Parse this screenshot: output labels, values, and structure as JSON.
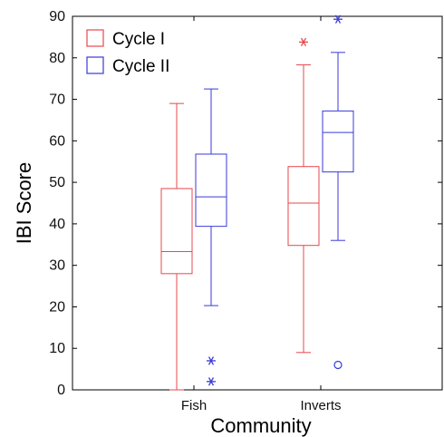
{
  "chart_data": {
    "type": "box",
    "xlabel": "Community",
    "ylabel": "IBI Score",
    "ylim": [
      0,
      90
    ],
    "yticks": [
      "0",
      "10",
      "20",
      "30",
      "40",
      "50",
      "60",
      "70",
      "80",
      "90"
    ],
    "categories": [
      "Fish",
      "Inverts"
    ],
    "grid": false,
    "legend_position": "top-left",
    "series": [
      {
        "name": "Cycle I",
        "color": "#e8474d",
        "boxes": [
          {
            "category": "Fish",
            "whisker_low": 0,
            "q1": 28,
            "median": 33.3,
            "q3": 48.5,
            "whisker_high": 69,
            "outliers": []
          },
          {
            "category": "Inverts",
            "whisker_low": 9,
            "q1": 34.8,
            "median": 45,
            "q3": 53.8,
            "whisker_high": 78.3,
            "outliers": [
              {
                "value": 83.8,
                "marker": "*"
              }
            ]
          }
        ]
      },
      {
        "name": "Cycle II",
        "color": "#3a3ad8",
        "boxes": [
          {
            "category": "Fish",
            "whisker_low": 20.3,
            "q1": 39.4,
            "median": 46.5,
            "q3": 56.8,
            "whisker_high": 72.5,
            "outliers": [
              {
                "value": 7,
                "marker": "*"
              },
              {
                "value": 2,
                "marker": "*"
              }
            ]
          },
          {
            "category": "Inverts",
            "whisker_low": 36,
            "q1": 52.5,
            "median": 62,
            "q3": 67.2,
            "whisker_high": 81.3,
            "outliers": [
              {
                "value": 6,
                "marker": "o"
              },
              {
                "value": 89.3,
                "marker": "*"
              }
            ]
          }
        ]
      }
    ]
  }
}
